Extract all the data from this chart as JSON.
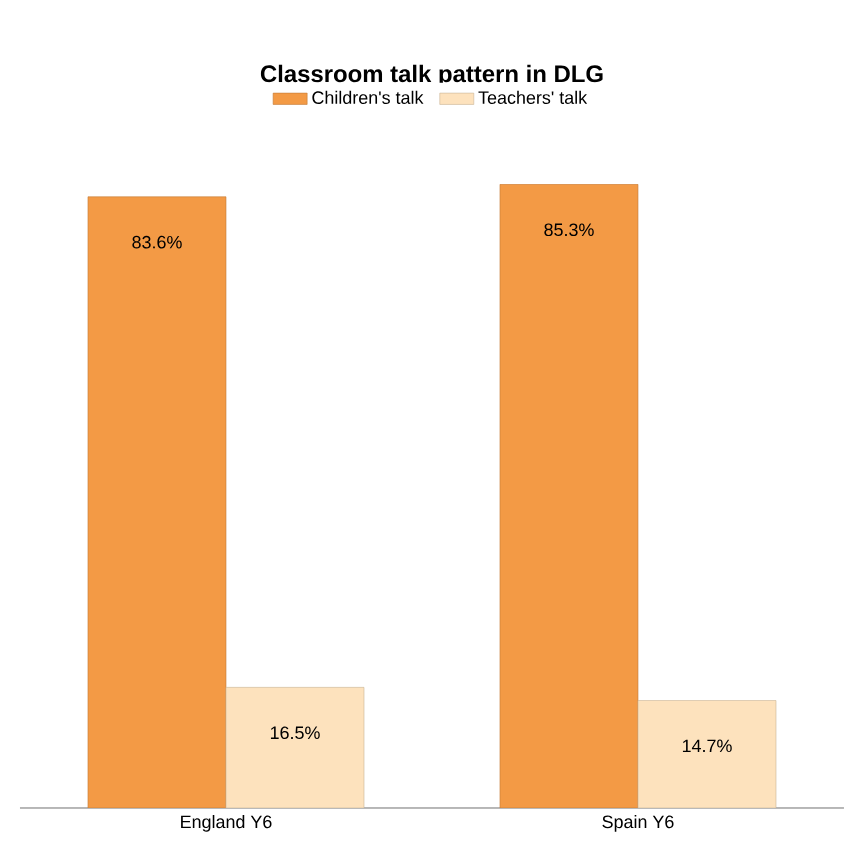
{
  "chart_data": {
    "type": "bar",
    "title": "Classroom talk pattern in DLG",
    "categories": [
      "England Y6",
      "Spain Y6"
    ],
    "series": [
      {
        "name": "Children's talk",
        "color": "#f39a45",
        "values": [
          83.6,
          85.3
        ],
        "value_labels": [
          "83.6%",
          "85.3%"
        ]
      },
      {
        "name": "Teachers' talk",
        "color": "#fde2bd",
        "values": [
          16.5,
          14.7
        ],
        "value_labels": [
          "16.5%",
          "14.7%"
        ]
      }
    ],
    "legend": "top"
  }
}
